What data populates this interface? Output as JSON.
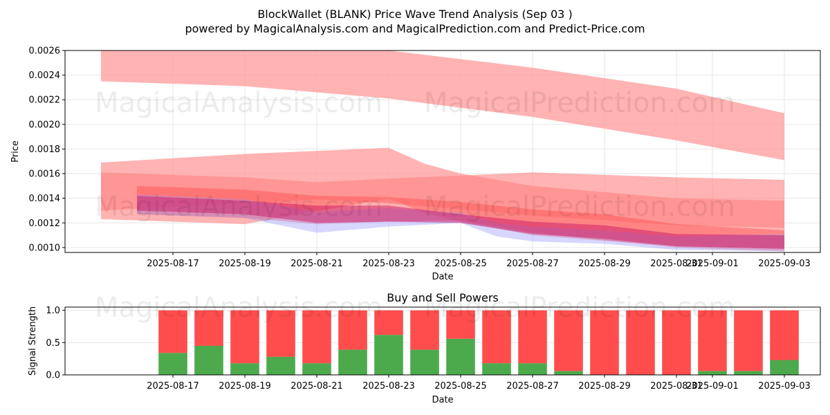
{
  "title_line1": "BlockWallet (BLANK) Price Wave Trend Analysis (Sep 03 )",
  "title_line2": "powered by MagicalAnalysis.com and MagicalPrediction.com and Predict-Price.com",
  "watermarks": [
    "MagicalAnalysis.com",
    "MagicalPrediction.com"
  ],
  "chart_data": [
    {
      "type": "area",
      "xlabel": "Date",
      "ylabel": "Price",
      "ylim": [
        0.00096,
        0.0026
      ],
      "xlim": [
        "2025-08-14",
        "2025-09-04"
      ],
      "y_ticks": [
        "0.0010",
        "0.0012",
        "0.0014",
        "0.0016",
        "0.0018",
        "0.0020",
        "0.0022",
        "0.0024",
        "0.0026"
      ],
      "x_ticks": [
        "2025-08-17",
        "2025-08-19",
        "2025-08-21",
        "2025-08-23",
        "2025-08-25",
        "2025-08-27",
        "2025-08-29",
        "2025-08-31",
        "2025-09-01",
        "2025-09-03"
      ],
      "grid": true,
      "bands": [
        {
          "color": "#ff9999",
          "opacity": 0.75,
          "x": [
            "2025-08-15",
            "2025-08-19",
            "2025-08-23",
            "2025-08-27",
            "2025-08-31",
            "2025-09-03"
          ],
          "upper": [
            0.0026,
            0.0026,
            0.0026,
            0.00246,
            0.00229,
            0.00209
          ],
          "lower": [
            0.00235,
            0.00231,
            0.00221,
            0.00206,
            0.00187,
            0.00171
          ]
        },
        {
          "color": "#ff9999",
          "opacity": 0.75,
          "x": [
            "2025-08-15",
            "2025-08-19",
            "2025-08-23",
            "2025-08-24",
            "2025-08-25",
            "2025-08-27",
            "2025-08-31",
            "2025-09-03"
          ],
          "upper": [
            0.00169,
            0.00176,
            0.00181,
            0.00168,
            0.0016,
            0.0015,
            0.0014,
            0.00138
          ],
          "lower": [
            0.00123,
            0.00119,
            0.0014,
            0.00128,
            0.00121,
            0.0011,
            0.00101,
            0.00099
          ]
        },
        {
          "color": "#ff8080",
          "opacity": 0.6,
          "x": [
            "2025-08-15",
            "2025-08-19",
            "2025-08-21",
            "2025-08-23",
            "2025-08-27",
            "2025-08-31",
            "2025-09-03"
          ],
          "upper": [
            0.00161,
            0.00157,
            0.00153,
            0.00156,
            0.00161,
            0.00157,
            0.00155
          ],
          "lower": [
            0.0013,
            0.00136,
            0.00139,
            0.00136,
            0.00126,
            0.00118,
            0.00116
          ]
        },
        {
          "color": "#ff4d4d",
          "opacity": 0.45,
          "x": [
            "2025-08-16",
            "2025-08-19",
            "2025-08-21",
            "2025-08-23",
            "2025-08-25",
            "2025-08-27",
            "2025-08-29",
            "2025-08-31",
            "2025-09-03"
          ],
          "upper": [
            0.0015,
            0.00147,
            0.00142,
            0.00141,
            0.00137,
            0.00131,
            0.00127,
            0.00119,
            0.00114
          ],
          "lower": [
            0.00127,
            0.00124,
            0.00119,
            0.00121,
            0.00122,
            0.00112,
            0.00106,
            0.001,
            0.00097
          ]
        },
        {
          "color": "#9999ff",
          "opacity": 0.4,
          "x": [
            "2025-08-16",
            "2025-08-19",
            "2025-08-21",
            "2025-08-23",
            "2025-08-25",
            "2025-08-26",
            "2025-08-27",
            "2025-08-29",
            "2025-08-31",
            "2025-09-03"
          ],
          "upper": [
            0.00143,
            0.00139,
            0.00129,
            0.00132,
            0.00128,
            0.0012,
            0.00117,
            0.00114,
            0.00109,
            0.00111
          ],
          "lower": [
            0.00127,
            0.00124,
            0.00112,
            0.00117,
            0.0012,
            0.00109,
            0.00105,
            0.00103,
            0.00098,
            0.00097
          ]
        },
        {
          "color": "#cc1a66",
          "opacity": 0.5,
          "x": [
            "2025-08-16",
            "2025-08-19",
            "2025-08-21",
            "2025-08-23",
            "2025-08-25",
            "2025-08-27",
            "2025-08-29",
            "2025-08-31",
            "2025-09-03"
          ],
          "upper": [
            0.00142,
            0.00138,
            0.00134,
            0.00134,
            0.00127,
            0.00121,
            0.00118,
            0.00111,
            0.0011
          ],
          "lower": [
            0.0013,
            0.00127,
            0.0012,
            0.00121,
            0.0012,
            0.00111,
            0.00107,
            0.00101,
            0.00099
          ]
        }
      ]
    },
    {
      "type": "bar",
      "title": "Buy and Sell Powers",
      "xlabel": "Date",
      "ylabel": "Signal Strength",
      "ylim": [
        0,
        1.05
      ],
      "y_ticks": [
        "0.0",
        "0.5",
        "1.0"
      ],
      "x_ticks": [
        "2025-08-17",
        "2025-08-19",
        "2025-08-21",
        "2025-08-23",
        "2025-08-25",
        "2025-08-27",
        "2025-08-29",
        "2025-08-31",
        "2025-09-01",
        "2025-09-03"
      ],
      "grid": true,
      "categories": [
        "2025-08-17",
        "2025-08-18",
        "2025-08-19",
        "2025-08-20",
        "2025-08-21",
        "2025-08-22",
        "2025-08-23",
        "2025-08-24",
        "2025-08-25",
        "2025-08-26",
        "2025-08-27",
        "2025-08-28",
        "2025-08-29",
        "2025-08-30",
        "2025-08-31",
        "2025-09-01",
        "2025-09-02",
        "2025-09-03"
      ],
      "series": [
        {
          "color": "#4caa4c",
          "values": [
            0.34,
            0.45,
            0.18,
            0.28,
            0.18,
            0.39,
            0.62,
            0.39,
            0.56,
            0.18,
            0.18,
            0.06,
            0.0,
            0.0,
            0.0,
            0.06,
            0.06,
            0.23
          ]
        },
        {
          "color": "#ff4d4d",
          "values": [
            0.66,
            0.55,
            0.82,
            0.72,
            0.82,
            0.61,
            0.38,
            0.61,
            0.44,
            0.82,
            0.82,
            0.94,
            1.0,
            1.0,
            1.0,
            0.94,
            0.94,
            0.77
          ]
        }
      ]
    }
  ]
}
